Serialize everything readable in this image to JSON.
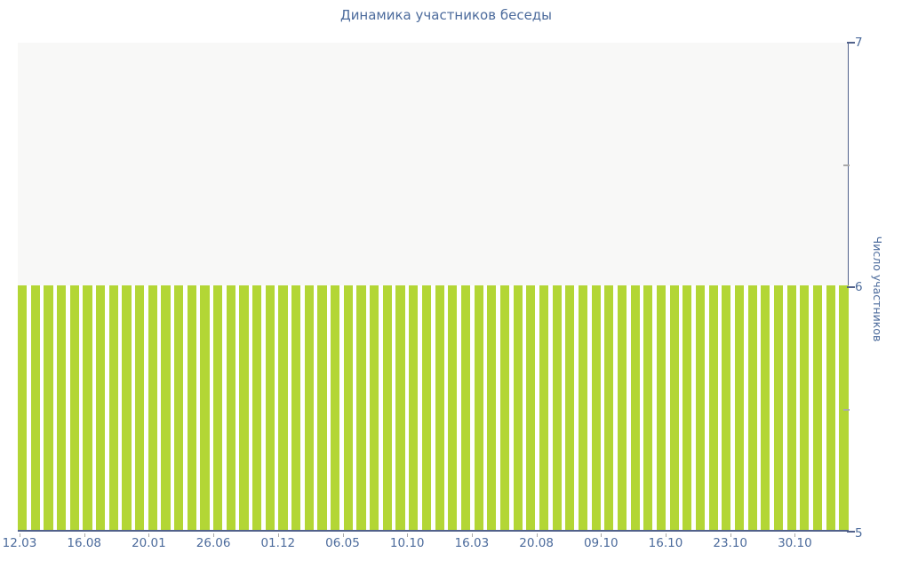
{
  "chart_data": {
    "type": "bar",
    "title": "Динамика участников беседы",
    "xlabel": "",
    "ylabel": "Число участников",
    "ylim": [
      5,
      7
    ],
    "yticks_major": [
      "7",
      "6",
      "5"
    ],
    "yticks_major_values": [
      7,
      6,
      5
    ],
    "yticks_minor_values": [
      6.5,
      5.5
    ],
    "grid": false,
    "legend": false,
    "x_tick_every": 5,
    "categories": [
      "12.03",
      "16.08",
      "20.01",
      "26.06",
      "01.12",
      "06.05",
      "10.10",
      "16.03",
      "20.08",
      "09.10",
      "16.10",
      "23.10",
      "30.10"
    ],
    "values": [
      6,
      6,
      6,
      6,
      6,
      6,
      6,
      6,
      6,
      6,
      6,
      6,
      6,
      6,
      6,
      6,
      6,
      6,
      6,
      6,
      6,
      6,
      6,
      6,
      6,
      6,
      6,
      6,
      6,
      6,
      6,
      6,
      6,
      6,
      6,
      6,
      6,
      6,
      6,
      6,
      6,
      6,
      6,
      6,
      6,
      6,
      6,
      6,
      6,
      6,
      6,
      6,
      6,
      6,
      6,
      6,
      6,
      6,
      6,
      6,
      6,
      6,
      6,
      6
    ]
  },
  "colors": {
    "bar": "#b3d635",
    "text_blue": "#4c6b9c",
    "axis": "#51618a",
    "plot_bg": "#f8f8f7",
    "minor_tick": "#a9a9a9",
    "gap": "#ffffff"
  }
}
